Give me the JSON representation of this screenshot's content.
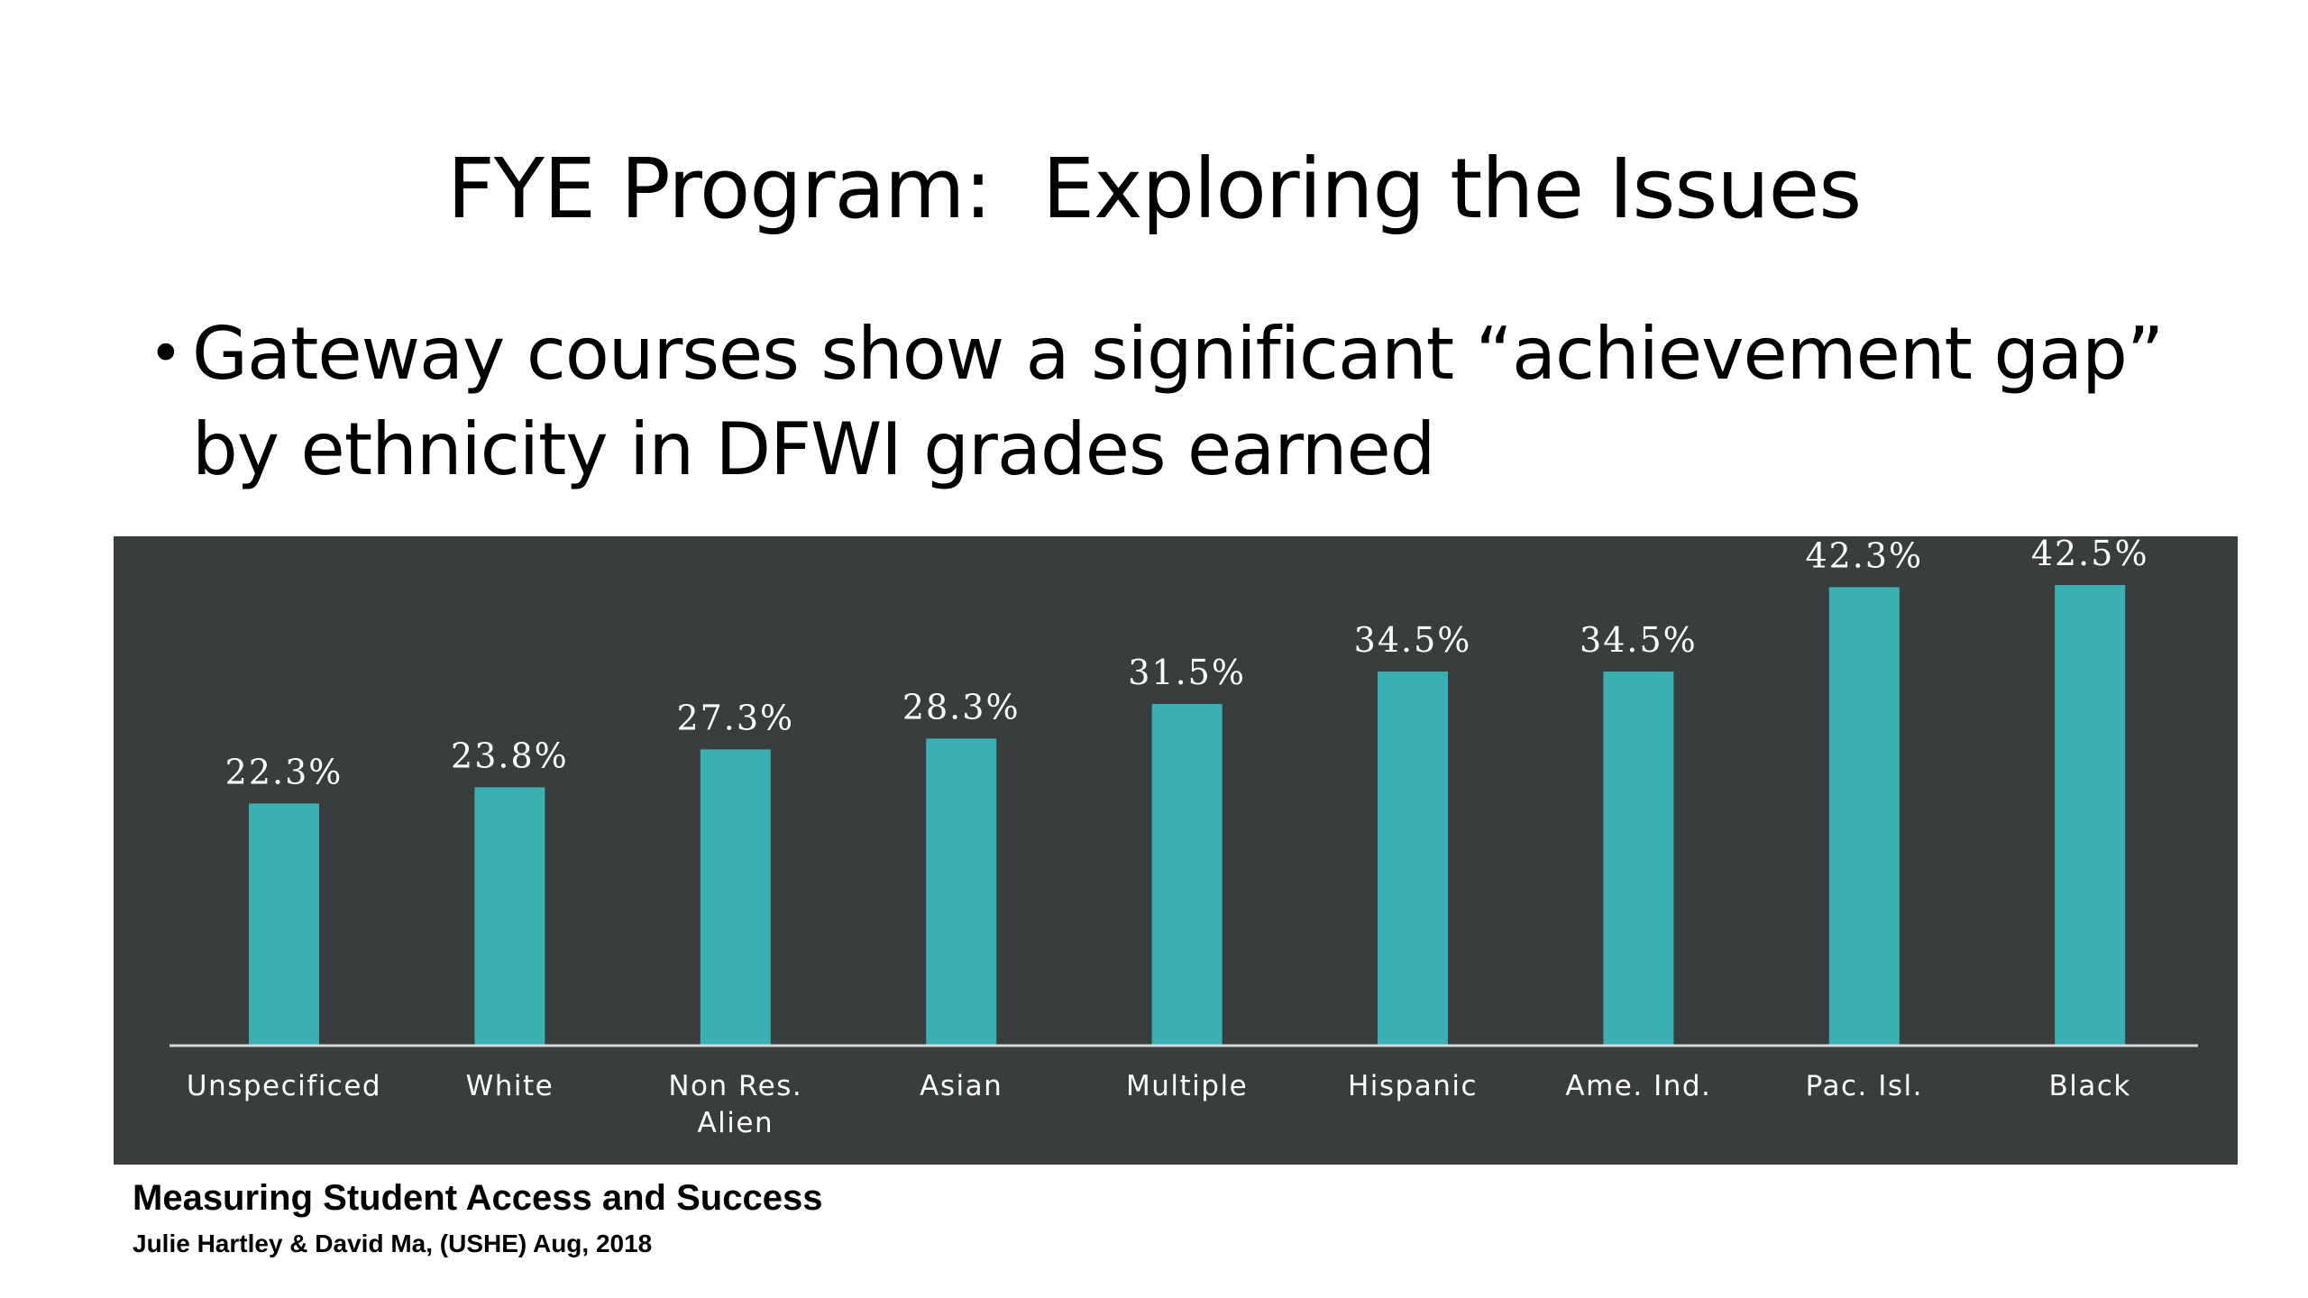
{
  "slide": {
    "title": "FYE Program:  Exploring the Issues",
    "bullet": "Gateway courses show a significant “achievement gap” by ethnicity in DFWI grades earned"
  },
  "chart_data": {
    "type": "bar",
    "categories": [
      "Unspecificed",
      "White",
      "Non Res. Alien",
      "Asian",
      "Multiple",
      "Hispanic",
      "Ame. Ind.",
      "Pac. Isl.",
      "Black"
    ],
    "values": [
      22.3,
      23.8,
      27.3,
      28.3,
      31.5,
      34.5,
      34.5,
      42.3,
      42.5
    ],
    "data_labels": [
      "22.3%",
      "23.8%",
      "27.3%",
      "28.3%",
      "31.5%",
      "34.5%",
      "34.5%",
      "42.3%",
      "42.5%"
    ],
    "title": "",
    "xlabel": "",
    "ylabel": "",
    "ylim": [
      0,
      47
    ],
    "grid": false,
    "legend": "none",
    "colors": {
      "background": "#393d3e",
      "bar": "#3ab0b2",
      "text": "#ffffff",
      "axis": "#d8d8d8"
    }
  },
  "footer": {
    "title": "Measuring Student Access and Success",
    "credit": "Julie Hartley & David Ma, (USHE) Aug, 2018"
  }
}
